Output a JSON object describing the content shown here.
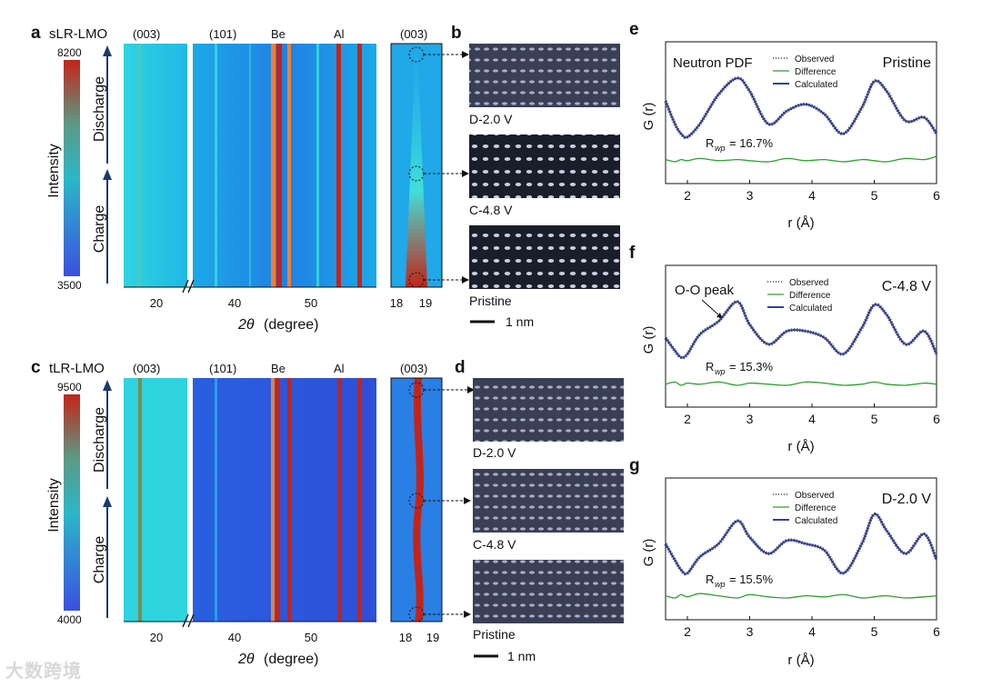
{
  "panels": {
    "a": {
      "letter": "a",
      "title": "sLR-LMO",
      "cmax": "8200",
      "cmin": "3500",
      "ylabel": "Intensity",
      "discharge": "Discharge",
      "charge": "Charge"
    },
    "c": {
      "letter": "c",
      "title": "tLR-LMO",
      "cmax": "9500",
      "cmin": "4000",
      "ylabel": "Intensity",
      "discharge": "Discharge",
      "charge": "Charge"
    }
  },
  "xrd": {
    "peak_labels": [
      "(003)",
      "(101)",
      "Be",
      "Al",
      "(003)"
    ],
    "xticks_main": [
      "20",
      "40",
      "50"
    ],
    "xticks_zoom": [
      "18",
      "19"
    ],
    "xlabel_symbol": "2θ",
    "xlabel_unit": "(degree)"
  },
  "tem": {
    "b": {
      "letter": "b",
      "labels": [
        "D-2.0 V",
        "C-4.8 V",
        "Pristine"
      ],
      "scale": "1 nm"
    },
    "d": {
      "letter": "d",
      "labels": [
        "D-2.0 V",
        "C-4.8 V",
        "Pristine"
      ],
      "scale": "1 nm"
    }
  },
  "watermark": "大数跨境",
  "colors": {
    "dark": "#2b4fd8",
    "mid": "#1ca9e8",
    "light": "#2fd3df",
    "hot": "#c42418",
    "orange": "#e8813a"
  },
  "chart_data": [
    {
      "type": "line",
      "panel": "e",
      "condition": "Pristine",
      "note": "Neutron PDF",
      "title": "",
      "xlabel": "r (Å)",
      "ylabel": "G (r)",
      "xlim": [
        1.65,
        6.0
      ],
      "xticks": [
        "2",
        "3",
        "4",
        "5",
        "6"
      ],
      "legend": [
        "Observed",
        "Difference",
        "Calculated"
      ],
      "rwp_label": "R",
      "rwp_sub": "wp",
      "rwp_value": "= 16.7%",
      "x": [
        1.65,
        1.8,
        1.9,
        2.0,
        2.2,
        2.5,
        2.8,
        3.0,
        3.3,
        3.6,
        3.9,
        4.2,
        4.5,
        4.8,
        5.0,
        5.2,
        5.5,
        5.8,
        6.0
      ],
      "series": [
        {
          "name": "Calculated",
          "values": [
            0.65,
            0.3,
            0.15,
            0.1,
            0.3,
            0.75,
            1.0,
            0.8,
            0.3,
            0.5,
            0.6,
            0.45,
            0.15,
            0.55,
            0.95,
            0.8,
            0.35,
            0.4,
            0.15
          ]
        },
        {
          "name": "Difference",
          "values": [
            0.02,
            0.0,
            0.02,
            0.01,
            0.03,
            0.01,
            0.02,
            0.01,
            0.0,
            0.03,
            0.01,
            0.02,
            0.0,
            0.02,
            0.01,
            0.0,
            0.03,
            0.02,
            0.05
          ]
        }
      ]
    },
    {
      "type": "line",
      "panel": "f",
      "condition": "C-4.8 V",
      "annotation": "O-O peak",
      "xlabel": "r (Å)",
      "ylabel": "G (r)",
      "xlim": [
        1.65,
        6.0
      ],
      "xticks": [
        "2",
        "3",
        "4",
        "5",
        "6"
      ],
      "legend": [
        "Observed",
        "Difference",
        "Calculated"
      ],
      "rwp_label": "R",
      "rwp_sub": "wp",
      "rwp_value": "= 15.3%",
      "x": [
        1.65,
        1.8,
        1.9,
        2.0,
        2.2,
        2.5,
        2.8,
        3.0,
        3.3,
        3.6,
        3.9,
        4.2,
        4.5,
        4.8,
        5.0,
        5.2,
        5.5,
        5.8,
        6.0
      ],
      "series": [
        {
          "name": "Calculated",
          "values": [
            0.45,
            0.25,
            0.15,
            0.2,
            0.5,
            0.7,
            1.0,
            0.65,
            0.35,
            0.55,
            0.55,
            0.45,
            0.2,
            0.6,
            0.95,
            0.8,
            0.35,
            0.55,
            0.2
          ]
        },
        {
          "name": "Difference",
          "values": [
            0.01,
            0.03,
            0.0,
            0.02,
            0.01,
            0.03,
            0.0,
            0.02,
            0.01,
            0.0,
            0.03,
            0.02,
            0.0,
            0.01,
            0.03,
            0.01,
            0.0,
            0.02,
            0.01
          ]
        }
      ]
    },
    {
      "type": "line",
      "panel": "g",
      "condition": "D-2.0 V",
      "xlabel": "r (Å)",
      "ylabel": "G (r)",
      "xlim": [
        1.65,
        6.0
      ],
      "xticks": [
        "2",
        "3",
        "4",
        "5",
        "6"
      ],
      "legend": [
        "Observed",
        "Difference",
        "Calculated"
      ],
      "rwp_label": "R",
      "rwp_sub": "wp",
      "rwp_value": "= 15.5%",
      "x": [
        1.65,
        1.8,
        1.9,
        2.0,
        2.2,
        2.5,
        2.8,
        3.0,
        3.3,
        3.6,
        3.9,
        4.2,
        4.5,
        4.8,
        5.0,
        5.2,
        5.5,
        5.8,
        6.0
      ],
      "series": [
        {
          "name": "Calculated",
          "values": [
            0.55,
            0.3,
            0.15,
            0.1,
            0.35,
            0.55,
            0.9,
            0.65,
            0.4,
            0.6,
            0.55,
            0.45,
            0.1,
            0.55,
            1.0,
            0.75,
            0.4,
            0.7,
            0.3
          ]
        },
        {
          "name": "Difference",
          "values": [
            0.02,
            0.0,
            0.03,
            0.01,
            0.04,
            0.02,
            0.0,
            0.03,
            0.01,
            0.0,
            0.02,
            0.01,
            0.03,
            0.0,
            0.01,
            0.02,
            0.0,
            0.01,
            0.02
          ]
        }
      ]
    }
  ]
}
